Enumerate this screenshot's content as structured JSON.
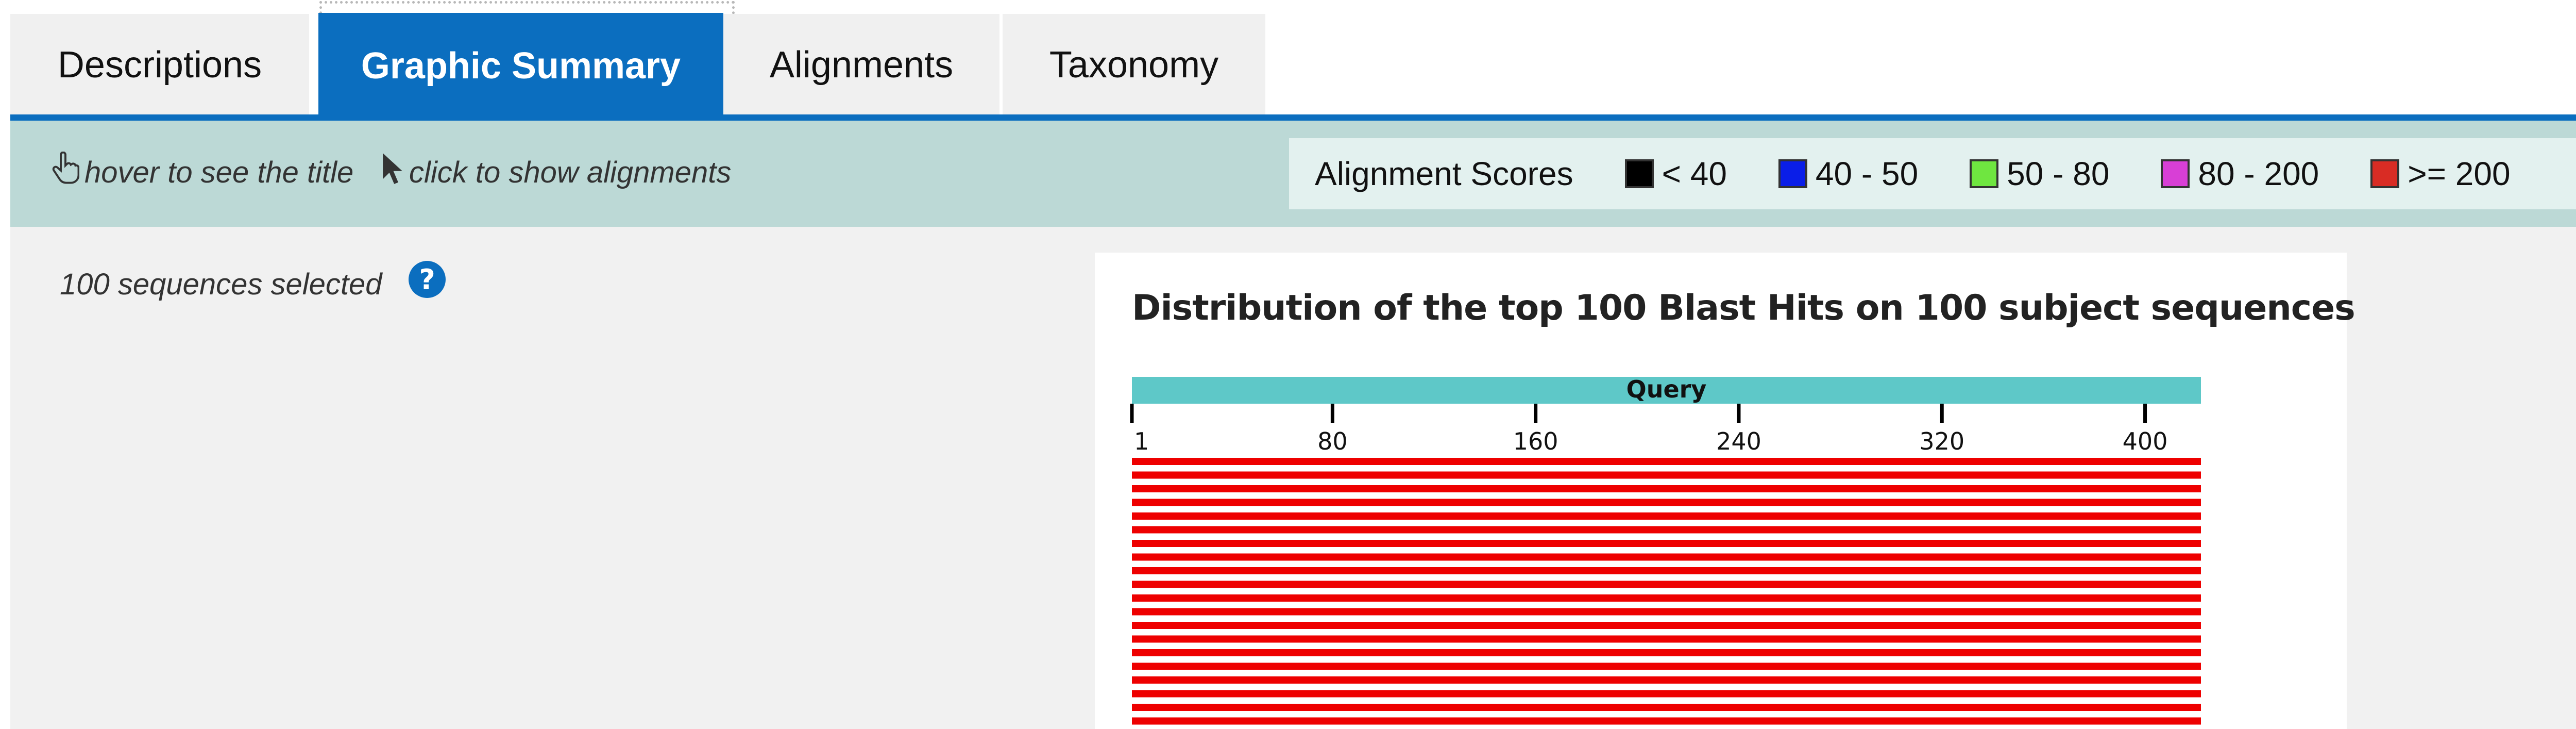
{
  "tabs": [
    {
      "label": "Descriptions",
      "active": false
    },
    {
      "label": "Graphic Summary",
      "active": true
    },
    {
      "label": "Alignments",
      "active": false
    },
    {
      "label": "Taxonomy",
      "active": false
    }
  ],
  "toolbar": {
    "hover_hint": "hover to see the title",
    "click_hint": "click to show alignments",
    "help_glyph": "?"
  },
  "legend": {
    "title": "Alignment Scores",
    "items": [
      {
        "label": "< 40",
        "color": "#000000"
      },
      {
        "label": "40 - 50",
        "color": "#0a1ee8"
      },
      {
        "label": "50 - 80",
        "color": "#6fe640"
      },
      {
        "label": "80 - 200",
        "color": "#d83fd6"
      },
      {
        "label": ">= 200",
        "color": "#d92c24"
      }
    ]
  },
  "selection": {
    "text": "100 sequences selected",
    "help_glyph": "?"
  },
  "chart_data": {
    "type": "bar",
    "title": "Distribution of the top 100 Blast Hits on 100 subject sequences",
    "query_label": "Query",
    "query_color": "#5ec8c8",
    "xlim": [
      1,
      422
    ],
    "ticks": [
      1,
      80,
      160,
      240,
      320,
      400
    ],
    "hit_color": "#ee0000",
    "hits_visible": [
      {
        "start": 1,
        "end": 422,
        "score_class": ">= 200"
      },
      {
        "start": 1,
        "end": 422,
        "score_class": ">= 200"
      },
      {
        "start": 1,
        "end": 422,
        "score_class": ">= 200"
      },
      {
        "start": 1,
        "end": 422,
        "score_class": ">= 200"
      },
      {
        "start": 1,
        "end": 422,
        "score_class": ">= 200"
      },
      {
        "start": 1,
        "end": 422,
        "score_class": ">= 200"
      },
      {
        "start": 1,
        "end": 422,
        "score_class": ">= 200"
      },
      {
        "start": 1,
        "end": 422,
        "score_class": ">= 200"
      },
      {
        "start": 1,
        "end": 422,
        "score_class": ">= 200"
      },
      {
        "start": 1,
        "end": 422,
        "score_class": ">= 200"
      },
      {
        "start": 1,
        "end": 422,
        "score_class": ">= 200"
      },
      {
        "start": 1,
        "end": 422,
        "score_class": ">= 200"
      },
      {
        "start": 1,
        "end": 422,
        "score_class": ">= 200"
      },
      {
        "start": 1,
        "end": 422,
        "score_class": ">= 200"
      },
      {
        "start": 1,
        "end": 422,
        "score_class": ">= 200"
      },
      {
        "start": 1,
        "end": 422,
        "score_class": ">= 200"
      },
      {
        "start": 1,
        "end": 422,
        "score_class": ">= 200"
      },
      {
        "start": 1,
        "end": 422,
        "score_class": ">= 200"
      },
      {
        "start": 1,
        "end": 422,
        "score_class": ">= 200"
      },
      {
        "start": 1,
        "end": 422,
        "score_class": ">= 200"
      }
    ]
  }
}
